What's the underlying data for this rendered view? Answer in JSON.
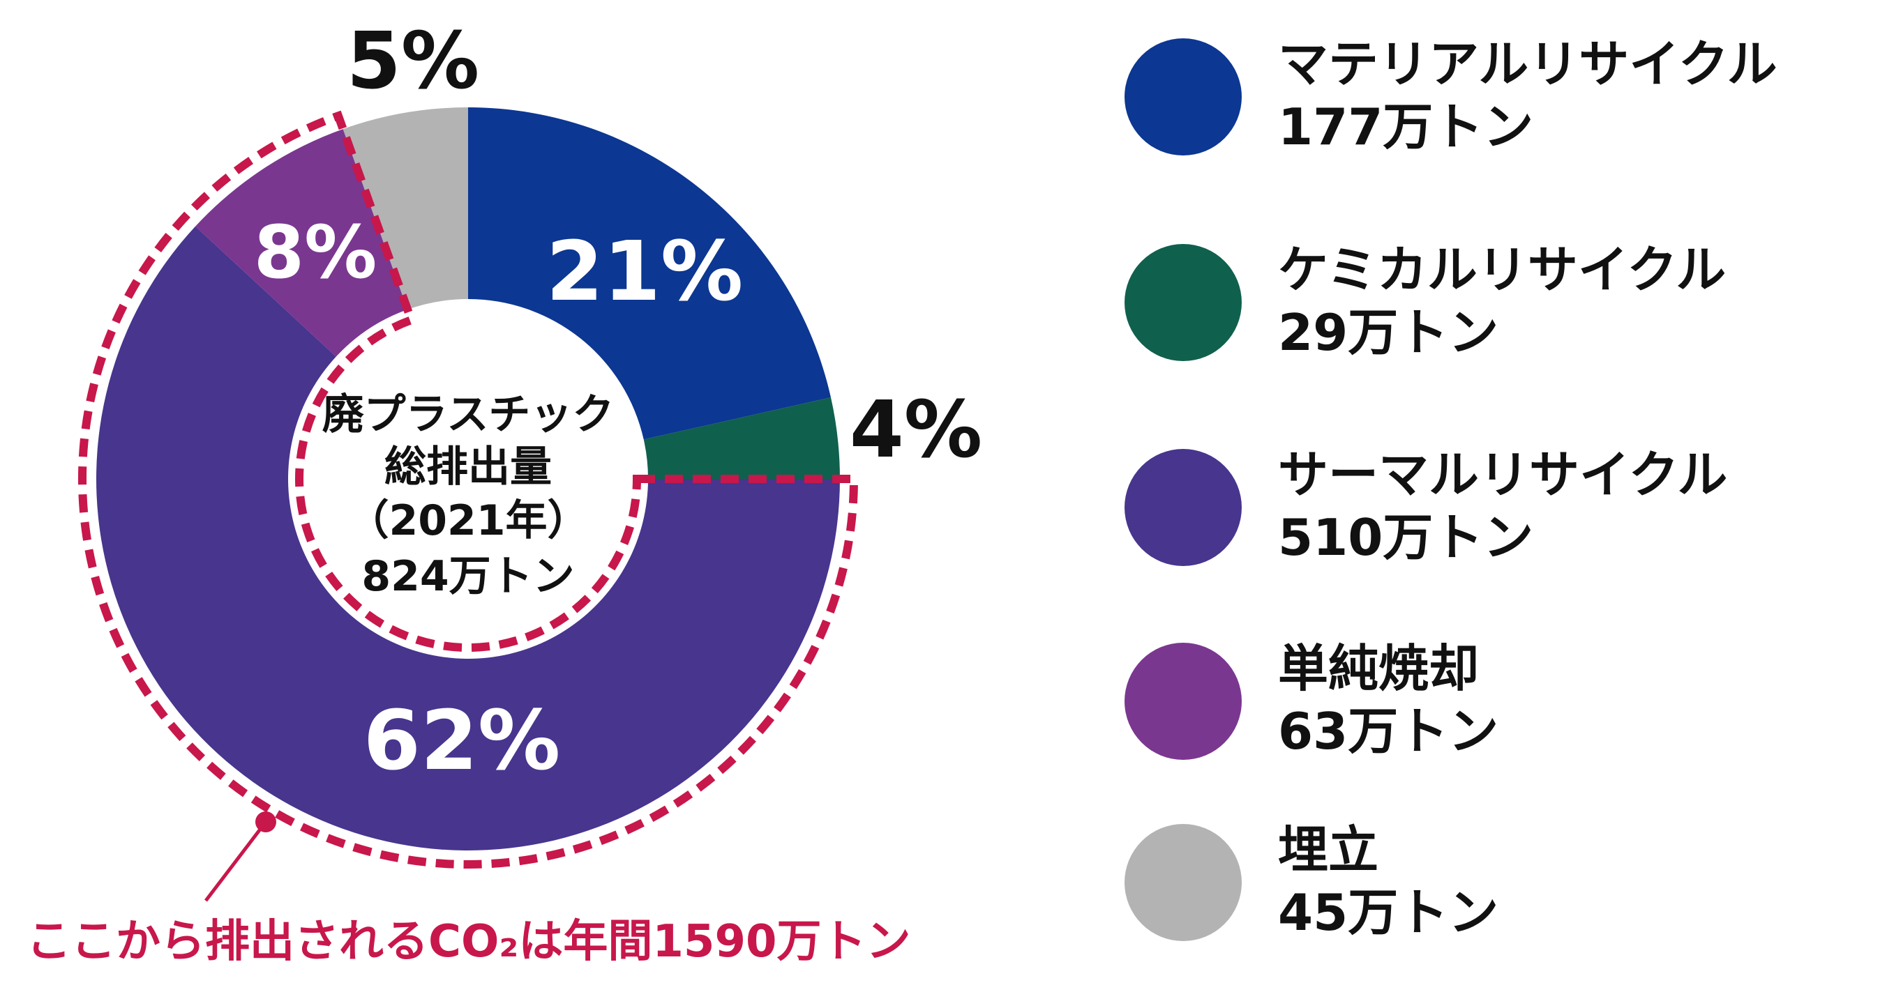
{
  "chart_data": {
    "type": "pie",
    "variant": "donut",
    "center_label": [
      "廃プラスチック",
      "総排出量",
      "（2021年）",
      "824万トン"
    ],
    "unit": "万トン",
    "total": 824,
    "slices": [
      {
        "name": "マテリアルリサイクル",
        "value": 177,
        "amount_label": "177万トン",
        "percent_label": "21%",
        "color": "#0C3792",
        "label_color": "#FFFFFF"
      },
      {
        "name": "ケミカルリサイクル",
        "value": 29,
        "amount_label": "29万トン",
        "percent_label": "4%",
        "color": "#10604E",
        "label_color": "#111111"
      },
      {
        "name": "サーマルリサイクル",
        "value": 510,
        "amount_label": "510万トン",
        "percent_label": "62%",
        "color": "#47358E",
        "label_color": "#FFFFFF"
      },
      {
        "name": "単純焼却",
        "value": 63,
        "amount_label": "63万トン",
        "percent_label": "8%",
        "color": "#7A3790",
        "label_color": "#FFFFFF"
      },
      {
        "name": "埋立",
        "value": 45,
        "amount_label": "45万トン",
        "percent_label": "5%",
        "color": "#B3B3B3",
        "label_color": "#111111"
      }
    ],
    "highlight": {
      "slices": [
        "サーマルリサイクル",
        "単純焼却"
      ],
      "annotation": "ここから排出されるCO₂は年間1590万トン",
      "color": "#C8174B"
    },
    "legend_position": "right"
  }
}
